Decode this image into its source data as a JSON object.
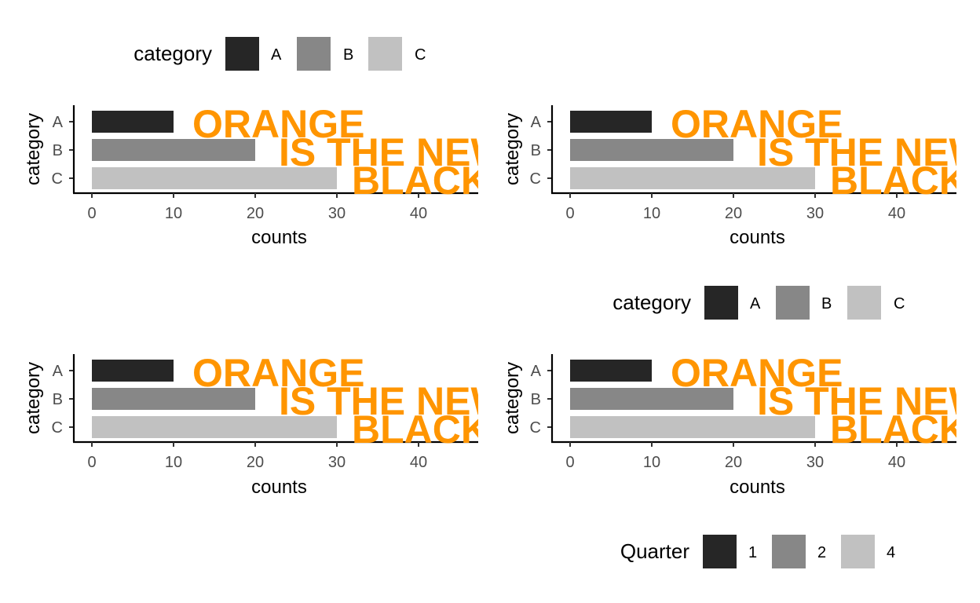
{
  "chart_data": [
    {
      "type": "bar",
      "orientation": "horizontal",
      "categories": [
        "A",
        "B",
        "C"
      ],
      "values": [
        10,
        20,
        30
      ],
      "xlabel": "counts",
      "ylabel": "category",
      "xlim": [
        0,
        47
      ],
      "x_ticks": [
        0,
        10,
        20,
        30,
        40
      ],
      "grid": false,
      "colors": [
        "#262626",
        "#878787",
        "#c1c1c1"
      ],
      "annotations": [
        "ORANGE",
        "IS THE NEW",
        "BLACK"
      ],
      "annotation_color": "#ff9500",
      "legend": {
        "title": "category",
        "entries": [
          "A",
          "B",
          "C"
        ],
        "position": "top"
      }
    },
    {
      "type": "bar",
      "orientation": "horizontal",
      "categories": [
        "A",
        "B",
        "C"
      ],
      "values": [
        10,
        20,
        30
      ],
      "xlabel": "counts",
      "ylabel": "category",
      "xlim": [
        0,
        47
      ],
      "x_ticks": [
        0,
        10,
        20,
        30,
        40
      ],
      "grid": false,
      "colors": [
        "#262626",
        "#878787",
        "#c1c1c1"
      ],
      "annotations": [
        "ORANGE",
        "IS THE NEW",
        "BLACK"
      ],
      "annotation_color": "#ff9500",
      "legend": {
        "title": "category",
        "entries": [
          "A",
          "B",
          "C"
        ],
        "position": "bottom"
      }
    },
    {
      "type": "bar",
      "orientation": "horizontal",
      "categories": [
        "A",
        "B",
        "C"
      ],
      "values": [
        10,
        20,
        30
      ],
      "xlabel": "counts",
      "ylabel": "category",
      "xlim": [
        0,
        47
      ],
      "x_ticks": [
        0,
        10,
        20,
        30,
        40
      ],
      "grid": false,
      "colors": [
        "#262626",
        "#878787",
        "#c1c1c1"
      ],
      "annotations": [
        "ORANGE",
        "IS THE NEW",
        "BLACK"
      ],
      "annotation_color": "#ff9500"
    },
    {
      "type": "bar",
      "orientation": "horizontal",
      "categories": [
        "A",
        "B",
        "C"
      ],
      "values": [
        10,
        20,
        30
      ],
      "xlabel": "counts",
      "ylabel": "category",
      "xlim": [
        0,
        47
      ],
      "x_ticks": [
        0,
        10,
        20,
        30,
        40
      ],
      "grid": false,
      "colors": [
        "#262626",
        "#878787",
        "#c1c1c1"
      ],
      "annotations": [
        "ORANGE",
        "IS THE NEW",
        "BLACK"
      ],
      "annotation_color": "#ff9500",
      "legend": {
        "title": "Quarter",
        "entries": [
          "1",
          "2",
          "4"
        ],
        "position": "bottom"
      }
    }
  ]
}
